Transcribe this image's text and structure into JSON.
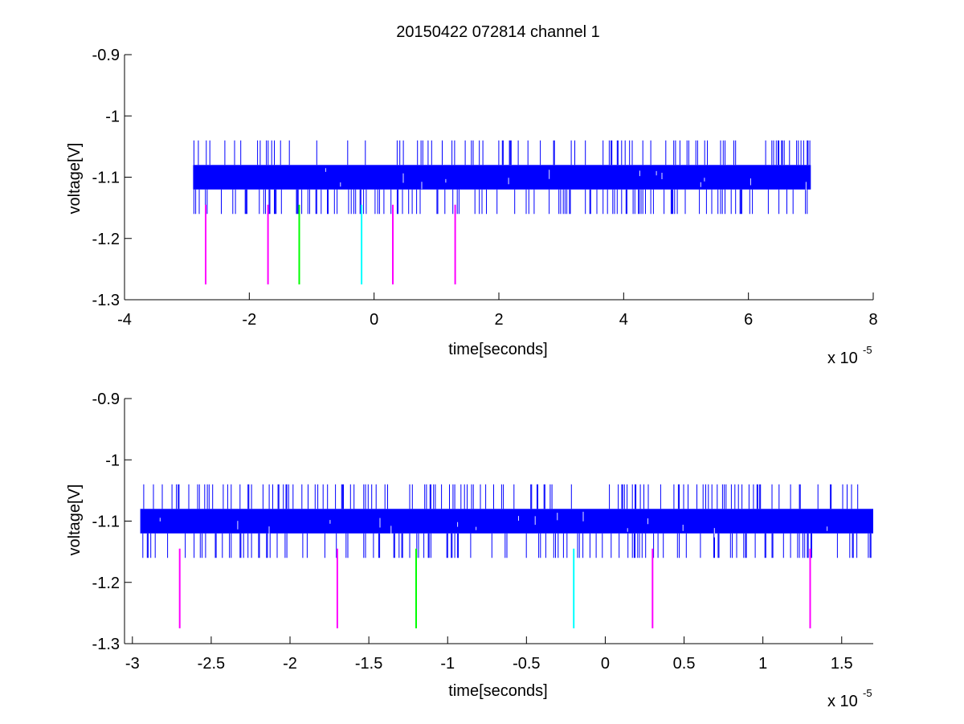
{
  "chart_data": [
    {
      "type": "line",
      "title": "20150422 072814 channel 1",
      "xlabel": "time[seconds]",
      "ylabel": "voltage[V]",
      "x_multiplier_base": "x 10",
      "x_multiplier_exp": "-5",
      "xlim": [
        -4,
        8
      ],
      "ylim": [
        -1.3,
        -0.9
      ],
      "y_reversed": true,
      "xticks": [
        -4,
        -2,
        0,
        2,
        4,
        6,
        8
      ],
      "xtick_labels": [
        "-4",
        "-2",
        "0",
        "2",
        "4",
        "6",
        "8"
      ],
      "yticks": [
        -0.9,
        -1,
        -1.1,
        -1.2,
        -1.3
      ],
      "ytick_labels": [
        "-0.9",
        "-1",
        "-1.1",
        "-1.2",
        "-1.3"
      ],
      "series": [
        {
          "style": "signal",
          "color": "#0000ff",
          "x_range": [
            -2.9,
            7.0
          ],
          "band": [
            -1.08,
            -1.12
          ],
          "spike_levels": [
            -1.04,
            -1.16
          ]
        }
      ],
      "markers": [
        {
          "x": -2.7,
          "y_top": -1.145,
          "y_bottom": -1.275,
          "color": "#ff00ff"
        },
        {
          "x": -1.7,
          "y_top": -1.145,
          "y_bottom": -1.275,
          "color": "#ff00ff"
        },
        {
          "x": -1.2,
          "y_top": -1.145,
          "y_bottom": -1.275,
          "color": "#00ff00"
        },
        {
          "x": -0.2,
          "y_top": -1.145,
          "y_bottom": -1.275,
          "color": "#00ffff"
        },
        {
          "x": 0.3,
          "y_top": -1.145,
          "y_bottom": -1.275,
          "color": "#ff00ff"
        },
        {
          "x": 1.3,
          "y_top": -1.145,
          "y_bottom": -1.275,
          "color": "#ff00ff"
        }
      ],
      "grid": false
    },
    {
      "type": "line",
      "title": "",
      "xlabel": "time[seconds]",
      "ylabel": "voltage[V]",
      "x_multiplier_base": "x 10",
      "x_multiplier_exp": "-5",
      "xlim": [
        -3.05,
        1.7
      ],
      "ylim": [
        -1.3,
        -0.9
      ],
      "y_reversed": true,
      "xticks": [
        -3,
        -2.5,
        -2,
        -1.5,
        -1,
        -0.5,
        0,
        0.5,
        1,
        1.5
      ],
      "xtick_labels": [
        "-3",
        "-2.5",
        "-2",
        "-1.5",
        "-1",
        "-0.5",
        "0",
        "0.5",
        "1",
        "1.5"
      ],
      "yticks": [
        -0.9,
        -1,
        -1.1,
        -1.2,
        -1.3
      ],
      "ytick_labels": [
        "-0.9",
        "-1",
        "-1.1",
        "-1.2",
        "-1.3"
      ],
      "series": [
        {
          "style": "signal",
          "color": "#0000ff",
          "x_range": [
            -2.95,
            1.7
          ],
          "band": [
            -1.08,
            -1.12
          ],
          "spike_levels": [
            -1.04,
            -1.16
          ]
        }
      ],
      "markers": [
        {
          "x": -2.7,
          "y_top": -1.145,
          "y_bottom": -1.275,
          "color": "#ff00ff"
        },
        {
          "x": -1.7,
          "y_top": -1.145,
          "y_bottom": -1.275,
          "color": "#ff00ff"
        },
        {
          "x": -1.2,
          "y_top": -1.145,
          "y_bottom": -1.275,
          "color": "#00ff00"
        },
        {
          "x": -0.2,
          "y_top": -1.145,
          "y_bottom": -1.275,
          "color": "#00ffff"
        },
        {
          "x": 0.3,
          "y_top": -1.145,
          "y_bottom": -1.275,
          "color": "#ff00ff"
        },
        {
          "x": 1.3,
          "y_top": -1.145,
          "y_bottom": -1.275,
          "color": "#ff00ff"
        }
      ],
      "grid": false
    }
  ]
}
